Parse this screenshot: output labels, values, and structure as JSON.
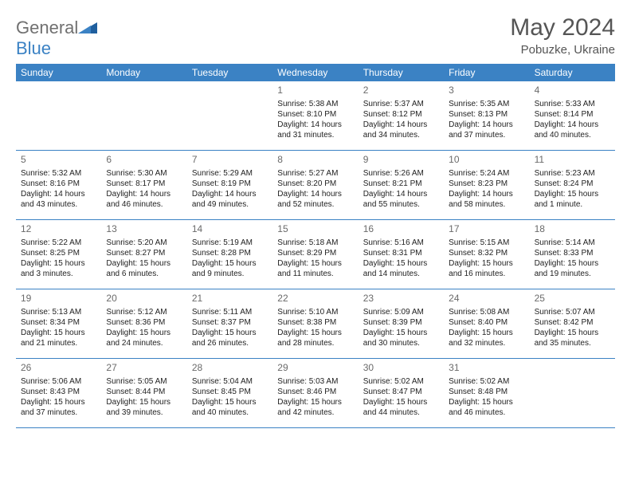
{
  "logo": {
    "prefix": "General",
    "suffix": "Blue"
  },
  "title": "May 2024",
  "location": "Pobuzke, Ukraine",
  "colors": {
    "headerBar": "#3b82c4",
    "headerText": "#ffffff",
    "titleColor": "#555555",
    "cellBorder": "#3b82c4",
    "bodyText": "#222222",
    "dayNum": "#6a6a6a",
    "logoGray": "#707070",
    "logoBlue": "#3b82c4",
    "bg": "#ffffff"
  },
  "fonts": {
    "titleSize": 30,
    "locationSize": 15,
    "dayheadSize": 12,
    "dayNumSize": 12,
    "cellSize": 10
  },
  "dayHeaders": [
    "Sunday",
    "Monday",
    "Tuesday",
    "Wednesday",
    "Thursday",
    "Friday",
    "Saturday"
  ],
  "weeks": [
    [
      null,
      null,
      null,
      {
        "n": "1",
        "sr": "Sunrise: 5:38 AM",
        "ss": "Sunset: 8:10 PM",
        "dl": "Daylight: 14 hours and 31 minutes."
      },
      {
        "n": "2",
        "sr": "Sunrise: 5:37 AM",
        "ss": "Sunset: 8:12 PM",
        "dl": "Daylight: 14 hours and 34 minutes."
      },
      {
        "n": "3",
        "sr": "Sunrise: 5:35 AM",
        "ss": "Sunset: 8:13 PM",
        "dl": "Daylight: 14 hours and 37 minutes."
      },
      {
        "n": "4",
        "sr": "Sunrise: 5:33 AM",
        "ss": "Sunset: 8:14 PM",
        "dl": "Daylight: 14 hours and 40 minutes."
      }
    ],
    [
      {
        "n": "5",
        "sr": "Sunrise: 5:32 AM",
        "ss": "Sunset: 8:16 PM",
        "dl": "Daylight: 14 hours and 43 minutes."
      },
      {
        "n": "6",
        "sr": "Sunrise: 5:30 AM",
        "ss": "Sunset: 8:17 PM",
        "dl": "Daylight: 14 hours and 46 minutes."
      },
      {
        "n": "7",
        "sr": "Sunrise: 5:29 AM",
        "ss": "Sunset: 8:19 PM",
        "dl": "Daylight: 14 hours and 49 minutes."
      },
      {
        "n": "8",
        "sr": "Sunrise: 5:27 AM",
        "ss": "Sunset: 8:20 PM",
        "dl": "Daylight: 14 hours and 52 minutes."
      },
      {
        "n": "9",
        "sr": "Sunrise: 5:26 AM",
        "ss": "Sunset: 8:21 PM",
        "dl": "Daylight: 14 hours and 55 minutes."
      },
      {
        "n": "10",
        "sr": "Sunrise: 5:24 AM",
        "ss": "Sunset: 8:23 PM",
        "dl": "Daylight: 14 hours and 58 minutes."
      },
      {
        "n": "11",
        "sr": "Sunrise: 5:23 AM",
        "ss": "Sunset: 8:24 PM",
        "dl": "Daylight: 15 hours and 1 minute."
      }
    ],
    [
      {
        "n": "12",
        "sr": "Sunrise: 5:22 AM",
        "ss": "Sunset: 8:25 PM",
        "dl": "Daylight: 15 hours and 3 minutes."
      },
      {
        "n": "13",
        "sr": "Sunrise: 5:20 AM",
        "ss": "Sunset: 8:27 PM",
        "dl": "Daylight: 15 hours and 6 minutes."
      },
      {
        "n": "14",
        "sr": "Sunrise: 5:19 AM",
        "ss": "Sunset: 8:28 PM",
        "dl": "Daylight: 15 hours and 9 minutes."
      },
      {
        "n": "15",
        "sr": "Sunrise: 5:18 AM",
        "ss": "Sunset: 8:29 PM",
        "dl": "Daylight: 15 hours and 11 minutes."
      },
      {
        "n": "16",
        "sr": "Sunrise: 5:16 AM",
        "ss": "Sunset: 8:31 PM",
        "dl": "Daylight: 15 hours and 14 minutes."
      },
      {
        "n": "17",
        "sr": "Sunrise: 5:15 AM",
        "ss": "Sunset: 8:32 PM",
        "dl": "Daylight: 15 hours and 16 minutes."
      },
      {
        "n": "18",
        "sr": "Sunrise: 5:14 AM",
        "ss": "Sunset: 8:33 PM",
        "dl": "Daylight: 15 hours and 19 minutes."
      }
    ],
    [
      {
        "n": "19",
        "sr": "Sunrise: 5:13 AM",
        "ss": "Sunset: 8:34 PM",
        "dl": "Daylight: 15 hours and 21 minutes."
      },
      {
        "n": "20",
        "sr": "Sunrise: 5:12 AM",
        "ss": "Sunset: 8:36 PM",
        "dl": "Daylight: 15 hours and 24 minutes."
      },
      {
        "n": "21",
        "sr": "Sunrise: 5:11 AM",
        "ss": "Sunset: 8:37 PM",
        "dl": "Daylight: 15 hours and 26 minutes."
      },
      {
        "n": "22",
        "sr": "Sunrise: 5:10 AM",
        "ss": "Sunset: 8:38 PM",
        "dl": "Daylight: 15 hours and 28 minutes."
      },
      {
        "n": "23",
        "sr": "Sunrise: 5:09 AM",
        "ss": "Sunset: 8:39 PM",
        "dl": "Daylight: 15 hours and 30 minutes."
      },
      {
        "n": "24",
        "sr": "Sunrise: 5:08 AM",
        "ss": "Sunset: 8:40 PM",
        "dl": "Daylight: 15 hours and 32 minutes."
      },
      {
        "n": "25",
        "sr": "Sunrise: 5:07 AM",
        "ss": "Sunset: 8:42 PM",
        "dl": "Daylight: 15 hours and 35 minutes."
      }
    ],
    [
      {
        "n": "26",
        "sr": "Sunrise: 5:06 AM",
        "ss": "Sunset: 8:43 PM",
        "dl": "Daylight: 15 hours and 37 minutes."
      },
      {
        "n": "27",
        "sr": "Sunrise: 5:05 AM",
        "ss": "Sunset: 8:44 PM",
        "dl": "Daylight: 15 hours and 39 minutes."
      },
      {
        "n": "28",
        "sr": "Sunrise: 5:04 AM",
        "ss": "Sunset: 8:45 PM",
        "dl": "Daylight: 15 hours and 40 minutes."
      },
      {
        "n": "29",
        "sr": "Sunrise: 5:03 AM",
        "ss": "Sunset: 8:46 PM",
        "dl": "Daylight: 15 hours and 42 minutes."
      },
      {
        "n": "30",
        "sr": "Sunrise: 5:02 AM",
        "ss": "Sunset: 8:47 PM",
        "dl": "Daylight: 15 hours and 44 minutes."
      },
      {
        "n": "31",
        "sr": "Sunrise: 5:02 AM",
        "ss": "Sunset: 8:48 PM",
        "dl": "Daylight: 15 hours and 46 minutes."
      },
      null
    ]
  ]
}
